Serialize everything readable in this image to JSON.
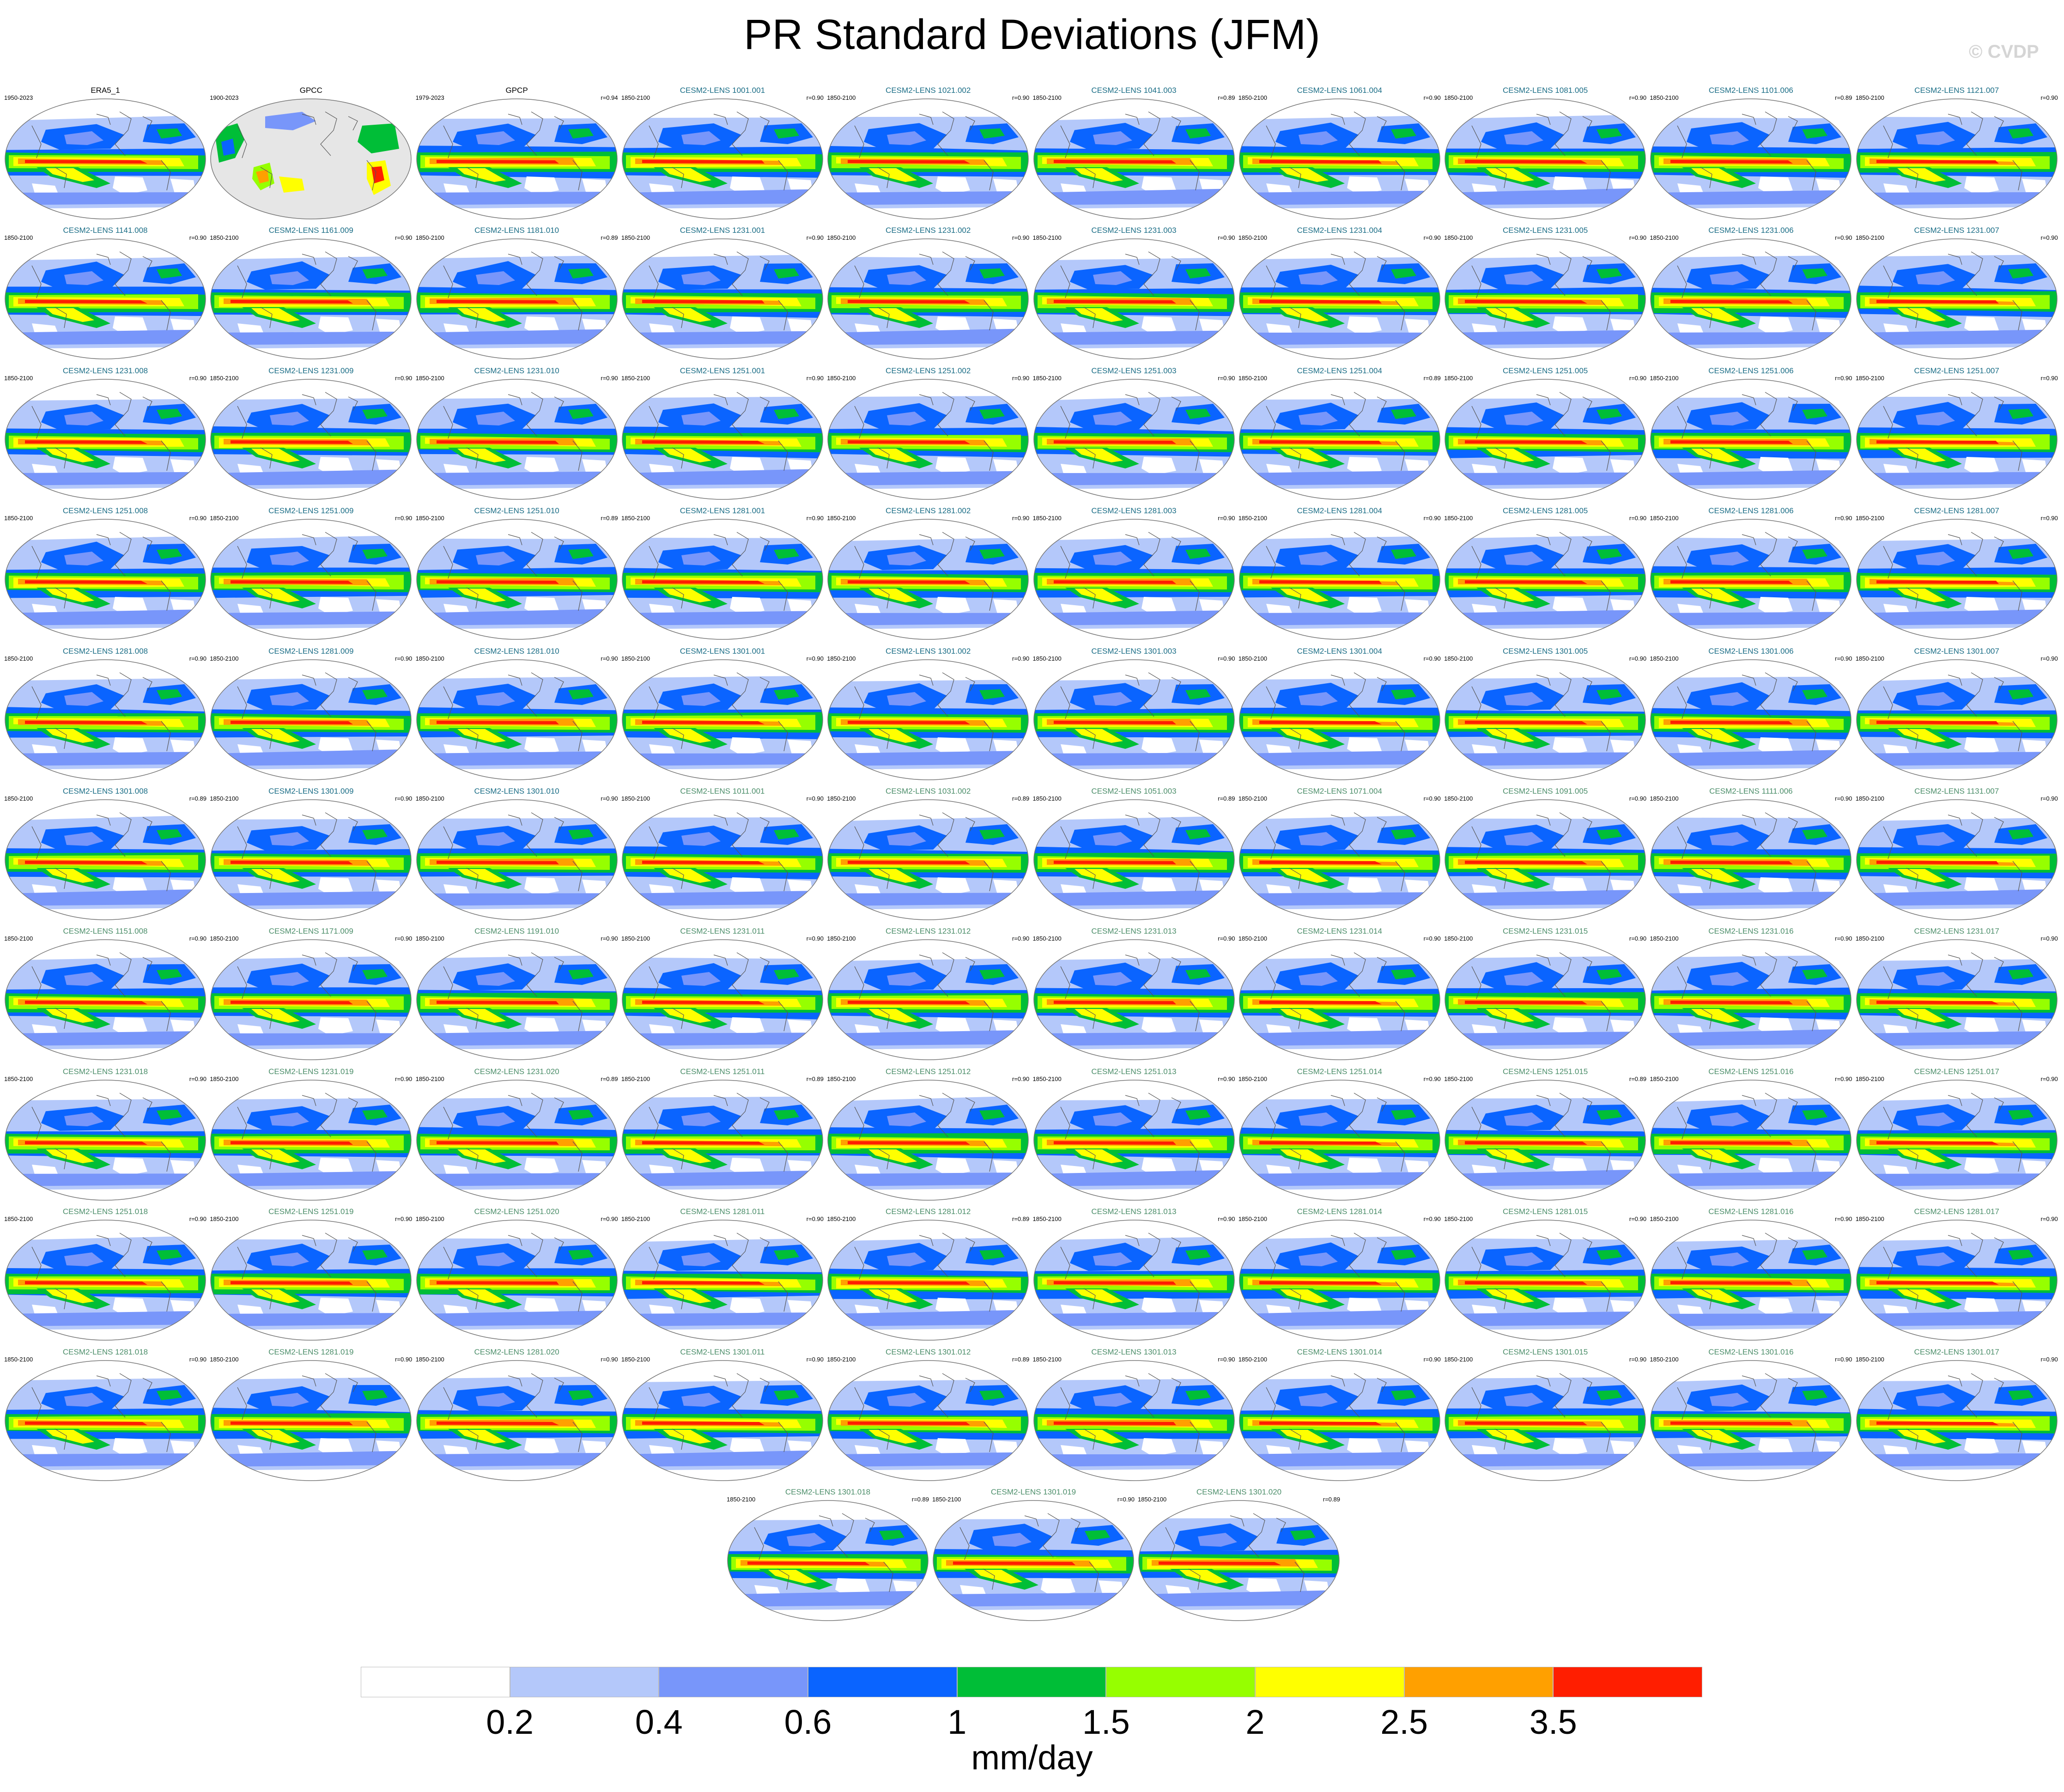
{
  "title": "PR Standard Deviations (JFM)",
  "watermark": "© CVDP",
  "colors": {
    "map_outline": "#777777",
    "land_mask": "#e6e6e6",
    "levels": [
      "#ffffff",
      "#b4c8fa",
      "#7896fa",
      "#0a64ff",
      "#00be37",
      "#96ff00",
      "#ffff00",
      "#ffa000",
      "#ff1e00"
    ]
  },
  "chart_data": {
    "type": "heatmap",
    "variable": "PR",
    "units": "mm/day",
    "colorbar": {
      "labels": [
        "0.2",
        "0.4",
        "0.6",
        "1",
        "1.5",
        "2",
        "2.5",
        "3.5"
      ],
      "colors": [
        "#ffffff",
        "#b4c8fa",
        "#7896fa",
        "#0a64ff",
        "#00be37",
        "#96ff00",
        "#ffff00",
        "#ffa000",
        "#ff1e00"
      ],
      "units_label": "mm/day"
    },
    "panels": [
      {
        "name": "ERA5_1",
        "years": "1950-2023",
        "corr": "",
        "title_color": "#000000",
        "masked_ocean": false
      },
      {
        "name": "GPCC",
        "years": "1900-2023",
        "corr": "",
        "title_color": "#000000",
        "masked_ocean": true
      },
      {
        "name": "GPCP",
        "years": "1979-2023",
        "corr": "r=0.94",
        "title_color": "#000000",
        "masked_ocean": false
      },
      {
        "name": "CESM2-LENS 1001.001",
        "years": "1850-2100",
        "corr": "r=0.90",
        "title_color": "#1a6d86"
      },
      {
        "name": "CESM2-LENS 1021.002",
        "years": "1850-2100",
        "corr": "r=0.90",
        "title_color": "#1a6d86"
      },
      {
        "name": "CESM2-LENS 1041.003",
        "years": "1850-2100",
        "corr": "r=0.89",
        "title_color": "#1a6d86"
      },
      {
        "name": "CESM2-LENS 1061.004",
        "years": "1850-2100",
        "corr": "r=0.90",
        "title_color": "#1a6d86"
      },
      {
        "name": "CESM2-LENS 1081.005",
        "years": "1850-2100",
        "corr": "r=0.90",
        "title_color": "#1a6d86"
      },
      {
        "name": "CESM2-LENS 1101.006",
        "years": "1850-2100",
        "corr": "r=0.89",
        "title_color": "#1a6d86"
      },
      {
        "name": "CESM2-LENS 1121.007",
        "years": "1850-2100",
        "corr": "r=0.90",
        "title_color": "#1a6d86"
      },
      {
        "name": "CESM2-LENS 1141.008",
        "years": "1850-2100",
        "corr": "r=0.90",
        "title_color": "#1a6d86"
      },
      {
        "name": "CESM2-LENS 1161.009",
        "years": "1850-2100",
        "corr": "r=0.90",
        "title_color": "#1a6d86"
      },
      {
        "name": "CESM2-LENS 1181.010",
        "years": "1850-2100",
        "corr": "r=0.89",
        "title_color": "#1a6d86"
      },
      {
        "name": "CESM2-LENS 1231.001",
        "years": "1850-2100",
        "corr": "r=0.90",
        "title_color": "#1a6d86"
      },
      {
        "name": "CESM2-LENS 1231.002",
        "years": "1850-2100",
        "corr": "r=0.90",
        "title_color": "#1a6d86"
      },
      {
        "name": "CESM2-LENS 1231.003",
        "years": "1850-2100",
        "corr": "r=0.90",
        "title_color": "#1a6d86"
      },
      {
        "name": "CESM2-LENS 1231.004",
        "years": "1850-2100",
        "corr": "r=0.90",
        "title_color": "#1a6d86"
      },
      {
        "name": "CESM2-LENS 1231.005",
        "years": "1850-2100",
        "corr": "r=0.90",
        "title_color": "#1a6d86"
      },
      {
        "name": "CESM2-LENS 1231.006",
        "years": "1850-2100",
        "corr": "r=0.90",
        "title_color": "#1a6d86"
      },
      {
        "name": "CESM2-LENS 1231.007",
        "years": "1850-2100",
        "corr": "r=0.90",
        "title_color": "#1a6d86"
      },
      {
        "name": "CESM2-LENS 1231.008",
        "years": "1850-2100",
        "corr": "r=0.90",
        "title_color": "#1a6d86"
      },
      {
        "name": "CESM2-LENS 1231.009",
        "years": "1850-2100",
        "corr": "r=0.90",
        "title_color": "#1a6d86"
      },
      {
        "name": "CESM2-LENS 1231.010",
        "years": "1850-2100",
        "corr": "r=0.90",
        "title_color": "#1a6d86"
      },
      {
        "name": "CESM2-LENS 1251.001",
        "years": "1850-2100",
        "corr": "r=0.90",
        "title_color": "#1a6d86"
      },
      {
        "name": "CESM2-LENS 1251.002",
        "years": "1850-2100",
        "corr": "r=0.90",
        "title_color": "#1a6d86"
      },
      {
        "name": "CESM2-LENS 1251.003",
        "years": "1850-2100",
        "corr": "r=0.90",
        "title_color": "#1a6d86"
      },
      {
        "name": "CESM2-LENS 1251.004",
        "years": "1850-2100",
        "corr": "r=0.89",
        "title_color": "#1a6d86"
      },
      {
        "name": "CESM2-LENS 1251.005",
        "years": "1850-2100",
        "corr": "r=0.90",
        "title_color": "#1a6d86"
      },
      {
        "name": "CESM2-LENS 1251.006",
        "years": "1850-2100",
        "corr": "r=0.90",
        "title_color": "#1a6d86"
      },
      {
        "name": "CESM2-LENS 1251.007",
        "years": "1850-2100",
        "corr": "r=0.90",
        "title_color": "#1a6d86"
      },
      {
        "name": "CESM2-LENS 1251.008",
        "years": "1850-2100",
        "corr": "r=0.90",
        "title_color": "#1a6d86"
      },
      {
        "name": "CESM2-LENS 1251.009",
        "years": "1850-2100",
        "corr": "r=0.90",
        "title_color": "#1a6d86"
      },
      {
        "name": "CESM2-LENS 1251.010",
        "years": "1850-2100",
        "corr": "r=0.89",
        "title_color": "#1a6d86"
      },
      {
        "name": "CESM2-LENS 1281.001",
        "years": "1850-2100",
        "corr": "r=0.90",
        "title_color": "#1a6d86"
      },
      {
        "name": "CESM2-LENS 1281.002",
        "years": "1850-2100",
        "corr": "r=0.90",
        "title_color": "#1a6d86"
      },
      {
        "name": "CESM2-LENS 1281.003",
        "years": "1850-2100",
        "corr": "r=0.90",
        "title_color": "#1a6d86"
      },
      {
        "name": "CESM2-LENS 1281.004",
        "years": "1850-2100",
        "corr": "r=0.90",
        "title_color": "#1a6d86"
      },
      {
        "name": "CESM2-LENS 1281.005",
        "years": "1850-2100",
        "corr": "r=0.90",
        "title_color": "#1a6d86"
      },
      {
        "name": "CESM2-LENS 1281.006",
        "years": "1850-2100",
        "corr": "r=0.90",
        "title_color": "#1a6d86"
      },
      {
        "name": "CESM2-LENS 1281.007",
        "years": "1850-2100",
        "corr": "r=0.90",
        "title_color": "#1a6d86"
      },
      {
        "name": "CESM2-LENS 1281.008",
        "years": "1850-2100",
        "corr": "r=0.90",
        "title_color": "#1a6d86"
      },
      {
        "name": "CESM2-LENS 1281.009",
        "years": "1850-2100",
        "corr": "r=0.90",
        "title_color": "#1a6d86"
      },
      {
        "name": "CESM2-LENS 1281.010",
        "years": "1850-2100",
        "corr": "r=0.90",
        "title_color": "#1a6d86"
      },
      {
        "name": "CESM2-LENS 1301.001",
        "years": "1850-2100",
        "corr": "r=0.90",
        "title_color": "#1a6d86"
      },
      {
        "name": "CESM2-LENS 1301.002",
        "years": "1850-2100",
        "corr": "r=0.90",
        "title_color": "#1a6d86"
      },
      {
        "name": "CESM2-LENS 1301.003",
        "years": "1850-2100",
        "corr": "r=0.90",
        "title_color": "#1a6d86"
      },
      {
        "name": "CESM2-LENS 1301.004",
        "years": "1850-2100",
        "corr": "r=0.90",
        "title_color": "#1a6d86"
      },
      {
        "name": "CESM2-LENS 1301.005",
        "years": "1850-2100",
        "corr": "r=0.90",
        "title_color": "#1a6d86"
      },
      {
        "name": "CESM2-LENS 1301.006",
        "years": "1850-2100",
        "corr": "r=0.90",
        "title_color": "#1a6d86"
      },
      {
        "name": "CESM2-LENS 1301.007",
        "years": "1850-2100",
        "corr": "r=0.90",
        "title_color": "#1a6d86"
      },
      {
        "name": "CESM2-LENS 1301.008",
        "years": "1850-2100",
        "corr": "r=0.89",
        "title_color": "#1a6d86"
      },
      {
        "name": "CESM2-LENS 1301.009",
        "years": "1850-2100",
        "corr": "r=0.90",
        "title_color": "#1a6d86"
      },
      {
        "name": "CESM2-LENS 1301.010",
        "years": "1850-2100",
        "corr": "r=0.90",
        "title_color": "#1a6d86"
      },
      {
        "name": "CESM2-LENS 1011.001",
        "years": "1850-2100",
        "corr": "r=0.90",
        "title_color": "#4c8e6a"
      },
      {
        "name": "CESM2-LENS 1031.002",
        "years": "1850-2100",
        "corr": "r=0.89",
        "title_color": "#4c8e6a"
      },
      {
        "name": "CESM2-LENS 1051.003",
        "years": "1850-2100",
        "corr": "r=0.89",
        "title_color": "#4c8e6a"
      },
      {
        "name": "CESM2-LENS 1071.004",
        "years": "1850-2100",
        "corr": "r=0.90",
        "title_color": "#4c8e6a"
      },
      {
        "name": "CESM2-LENS 1091.005",
        "years": "1850-2100",
        "corr": "r=0.90",
        "title_color": "#4c8e6a"
      },
      {
        "name": "CESM2-LENS 1111.006",
        "years": "1850-2100",
        "corr": "r=0.90",
        "title_color": "#4c8e6a"
      },
      {
        "name": "CESM2-LENS 1131.007",
        "years": "1850-2100",
        "corr": "r=0.90",
        "title_color": "#4c8e6a"
      },
      {
        "name": "CESM2-LENS 1151.008",
        "years": "1850-2100",
        "corr": "r=0.90",
        "title_color": "#4c8e6a"
      },
      {
        "name": "CESM2-LENS 1171.009",
        "years": "1850-2100",
        "corr": "r=0.90",
        "title_color": "#4c8e6a"
      },
      {
        "name": "CESM2-LENS 1191.010",
        "years": "1850-2100",
        "corr": "r=0.90",
        "title_color": "#4c8e6a"
      },
      {
        "name": "CESM2-LENS 1231.011",
        "years": "1850-2100",
        "corr": "r=0.90",
        "title_color": "#4c8e6a"
      },
      {
        "name": "CESM2-LENS 1231.012",
        "years": "1850-2100",
        "corr": "r=0.90",
        "title_color": "#4c8e6a"
      },
      {
        "name": "CESM2-LENS 1231.013",
        "years": "1850-2100",
        "corr": "r=0.90",
        "title_color": "#4c8e6a"
      },
      {
        "name": "CESM2-LENS 1231.014",
        "years": "1850-2100",
        "corr": "r=0.90",
        "title_color": "#4c8e6a"
      },
      {
        "name": "CESM2-LENS 1231.015",
        "years": "1850-2100",
        "corr": "r=0.90",
        "title_color": "#4c8e6a"
      },
      {
        "name": "CESM2-LENS 1231.016",
        "years": "1850-2100",
        "corr": "r=0.90",
        "title_color": "#4c8e6a"
      },
      {
        "name": "CESM2-LENS 1231.017",
        "years": "1850-2100",
        "corr": "r=0.90",
        "title_color": "#4c8e6a"
      },
      {
        "name": "CESM2-LENS 1231.018",
        "years": "1850-2100",
        "corr": "r=0.90",
        "title_color": "#4c8e6a"
      },
      {
        "name": "CESM2-LENS 1231.019",
        "years": "1850-2100",
        "corr": "r=0.90",
        "title_color": "#4c8e6a"
      },
      {
        "name": "CESM2-LENS 1231.020",
        "years": "1850-2100",
        "corr": "r=0.89",
        "title_color": "#4c8e6a"
      },
      {
        "name": "CESM2-LENS 1251.011",
        "years": "1850-2100",
        "corr": "r=0.89",
        "title_color": "#4c8e6a"
      },
      {
        "name": "CESM2-LENS 1251.012",
        "years": "1850-2100",
        "corr": "r=0.90",
        "title_color": "#4c8e6a"
      },
      {
        "name": "CESM2-LENS 1251.013",
        "years": "1850-2100",
        "corr": "r=0.90",
        "title_color": "#4c8e6a"
      },
      {
        "name": "CESM2-LENS 1251.014",
        "years": "1850-2100",
        "corr": "r=0.90",
        "title_color": "#4c8e6a"
      },
      {
        "name": "CESM2-LENS 1251.015",
        "years": "1850-2100",
        "corr": "r=0.89",
        "title_color": "#4c8e6a"
      },
      {
        "name": "CESM2-LENS 1251.016",
        "years": "1850-2100",
        "corr": "r=0.90",
        "title_color": "#4c8e6a"
      },
      {
        "name": "CESM2-LENS 1251.017",
        "years": "1850-2100",
        "corr": "r=0.90",
        "title_color": "#4c8e6a"
      },
      {
        "name": "CESM2-LENS 1251.018",
        "years": "1850-2100",
        "corr": "r=0.90",
        "title_color": "#4c8e6a"
      },
      {
        "name": "CESM2-LENS 1251.019",
        "years": "1850-2100",
        "corr": "r=0.90",
        "title_color": "#4c8e6a"
      },
      {
        "name": "CESM2-LENS 1251.020",
        "years": "1850-2100",
        "corr": "r=0.90",
        "title_color": "#4c8e6a"
      },
      {
        "name": "CESM2-LENS 1281.011",
        "years": "1850-2100",
        "corr": "r=0.90",
        "title_color": "#4c8e6a"
      },
      {
        "name": "CESM2-LENS 1281.012",
        "years": "1850-2100",
        "corr": "r=0.89",
        "title_color": "#4c8e6a"
      },
      {
        "name": "CESM2-LENS 1281.013",
        "years": "1850-2100",
        "corr": "r=0.90",
        "title_color": "#4c8e6a"
      },
      {
        "name": "CESM2-LENS 1281.014",
        "years": "1850-2100",
        "corr": "r=0.90",
        "title_color": "#4c8e6a"
      },
      {
        "name": "CESM2-LENS 1281.015",
        "years": "1850-2100",
        "corr": "r=0.90",
        "title_color": "#4c8e6a"
      },
      {
        "name": "CESM2-LENS 1281.016",
        "years": "1850-2100",
        "corr": "r=0.90",
        "title_color": "#4c8e6a"
      },
      {
        "name": "CESM2-LENS 1281.017",
        "years": "1850-2100",
        "corr": "r=0.90",
        "title_color": "#4c8e6a"
      },
      {
        "name": "CESM2-LENS 1281.018",
        "years": "1850-2100",
        "corr": "r=0.90",
        "title_color": "#4c8e6a"
      },
      {
        "name": "CESM2-LENS 1281.019",
        "years": "1850-2100",
        "corr": "r=0.90",
        "title_color": "#4c8e6a"
      },
      {
        "name": "CESM2-LENS 1281.020",
        "years": "1850-2100",
        "corr": "r=0.90",
        "title_color": "#4c8e6a"
      },
      {
        "name": "CESM2-LENS 1301.011",
        "years": "1850-2100",
        "corr": "r=0.90",
        "title_color": "#4c8e6a"
      },
      {
        "name": "CESM2-LENS 1301.012",
        "years": "1850-2100",
        "corr": "r=0.89",
        "title_color": "#4c8e6a"
      },
      {
        "name": "CESM2-LENS 1301.013",
        "years": "1850-2100",
        "corr": "r=0.90",
        "title_color": "#4c8e6a"
      },
      {
        "name": "CESM2-LENS 1301.014",
        "years": "1850-2100",
        "corr": "r=0.90",
        "title_color": "#4c8e6a"
      },
      {
        "name": "CESM2-LENS 1301.015",
        "years": "1850-2100",
        "corr": "r=0.90",
        "title_color": "#4c8e6a"
      },
      {
        "name": "CESM2-LENS 1301.016",
        "years": "1850-2100",
        "corr": "r=0.90",
        "title_color": "#4c8e6a"
      },
      {
        "name": "CESM2-LENS 1301.017",
        "years": "1850-2100",
        "corr": "r=0.90",
        "title_color": "#4c8e6a"
      },
      {
        "name": "CESM2-LENS 1301.018",
        "years": "1850-2100",
        "corr": "r=0.89",
        "title_color": "#4c8e6a"
      },
      {
        "name": "CESM2-LENS 1301.019",
        "years": "1850-2100",
        "corr": "r=0.90",
        "title_color": "#4c8e6a"
      },
      {
        "name": "CESM2-LENS 1301.020",
        "years": "1850-2100",
        "corr": "r=0.89",
        "title_color": "#4c8e6a"
      }
    ]
  }
}
